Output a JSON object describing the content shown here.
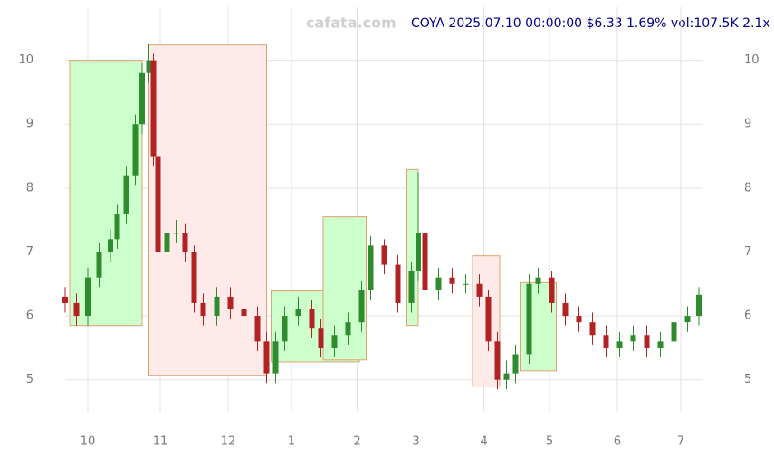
{
  "chart_data": {
    "type": "candlestick",
    "title": "COYA 2025.07.10 00:00:00 $6.33 1.69% vol:107.5K 2.1x",
    "watermark": "cafata.com",
    "xlim": [
      0,
      282
    ],
    "ylim": [
      4.5,
      10.83
    ],
    "xticks": [
      {
        "value": 10,
        "label": "10"
      },
      {
        "value": 42,
        "label": "11"
      },
      {
        "value": 72,
        "label": "12"
      },
      {
        "value": 100,
        "label": "1"
      },
      {
        "value": 129,
        "label": "2"
      },
      {
        "value": 155,
        "label": "3"
      },
      {
        "value": 185,
        "label": "4"
      },
      {
        "value": 214,
        "label": "5"
      },
      {
        "value": 244,
        "label": "6"
      },
      {
        "value": 272,
        "label": "7"
      }
    ],
    "yticks": [
      5,
      6,
      7,
      8,
      9,
      10
    ],
    "grid": true,
    "up_color": "#2e8b2e",
    "down_color": "#b22222",
    "x": [
      0,
      5,
      10,
      15,
      20,
      23,
      27,
      31,
      34,
      37,
      39,
      41,
      45,
      49,
      53,
      57,
      61,
      67,
      73,
      79,
      85,
      89,
      93,
      97,
      103,
      109,
      113,
      119,
      125,
      131,
      135,
      141,
      147,
      153,
      156,
      159,
      165,
      171,
      177,
      183,
      187,
      191,
      195,
      199,
      205,
      209,
      215,
      221,
      227,
      233,
      239,
      245,
      251,
      257,
      263,
      269,
      275,
      280
    ],
    "open": [
      6.3,
      6.2,
      6.0,
      6.6,
      7.0,
      7.2,
      7.6,
      8.2,
      9.0,
      9.8,
      10.0,
      8.5,
      7.0,
      7.3,
      7.3,
      7.0,
      6.2,
      6.0,
      6.3,
      6.1,
      6.0,
      5.6,
      5.1,
      5.6,
      6.0,
      6.1,
      5.8,
      5.5,
      5.7,
      5.9,
      6.4,
      7.1,
      6.8,
      6.2,
      6.7,
      7.3,
      6.4,
      6.6,
      6.5,
      6.5,
      6.3,
      5.6,
      5.0,
      5.1,
      5.4,
      6.5,
      6.6,
      6.2,
      6.0,
      5.9,
      5.7,
      5.5,
      5.6,
      5.7,
      5.5,
      5.6,
      5.9,
      6.0
    ],
    "high": [
      6.45,
      6.35,
      6.75,
      7.15,
      7.35,
      7.75,
      8.35,
      9.15,
      9.95,
      10.25,
      10.1,
      8.6,
      7.45,
      7.5,
      7.45,
      7.1,
      6.35,
      6.45,
      6.45,
      6.25,
      6.15,
      5.75,
      5.75,
      6.15,
      6.3,
      6.25,
      5.95,
      5.85,
      6.05,
      6.55,
      7.25,
      7.2,
      6.95,
      6.85,
      8.25,
      7.4,
      6.75,
      6.75,
      6.65,
      6.65,
      6.4,
      5.75,
      5.3,
      5.55,
      6.65,
      6.75,
      6.7,
      6.35,
      6.15,
      6.05,
      5.85,
      5.75,
      5.85,
      5.85,
      5.75,
      6.05,
      6.15,
      6.45
    ],
    "low": [
      6.05,
      5.85,
      5.85,
      6.45,
      6.85,
      7.05,
      7.45,
      8.05,
      8.85,
      9.65,
      8.35,
      6.85,
      6.85,
      7.15,
      6.85,
      6.05,
      5.85,
      5.85,
      5.95,
      5.85,
      5.45,
      4.95,
      4.95,
      5.45,
      5.85,
      5.65,
      5.35,
      5.35,
      5.55,
      5.75,
      6.25,
      6.65,
      6.05,
      6.05,
      6.55,
      6.25,
      6.25,
      6.35,
      6.35,
      6.15,
      5.45,
      4.85,
      4.85,
      4.95,
      5.25,
      6.35,
      6.05,
      5.85,
      5.75,
      5.55,
      5.35,
      5.35,
      5.45,
      5.35,
      5.35,
      5.45,
      5.75,
      5.85
    ],
    "close": [
      6.2,
      6.0,
      6.6,
      7.0,
      7.2,
      7.6,
      8.2,
      9.0,
      9.8,
      10.0,
      8.5,
      7.0,
      7.3,
      7.3,
      7.0,
      6.2,
      6.0,
      6.3,
      6.1,
      6.0,
      5.6,
      5.1,
      5.6,
      6.0,
      6.1,
      5.8,
      5.5,
      5.7,
      5.9,
      6.4,
      7.1,
      6.8,
      6.2,
      6.7,
      7.3,
      6.4,
      6.6,
      6.5,
      6.5,
      6.3,
      5.6,
      5.0,
      5.1,
      5.4,
      6.5,
      6.6,
      6.2,
      6.0,
      5.9,
      5.7,
      5.5,
      5.6,
      5.7,
      5.5,
      5.6,
      5.9,
      6.0,
      6.33
    ],
    "zones": [
      {
        "x": [
          2,
          34
        ],
        "y": [
          5.85,
          10.0
        ],
        "color": "#ccffcc"
      },
      {
        "x": [
          37,
          89
        ],
        "y": [
          5.07,
          10.24
        ],
        "color": "#ffeaea"
      },
      {
        "x": [
          91,
          130
        ],
        "y": [
          5.28,
          6.39
        ],
        "color": "#ccffcc"
      },
      {
        "x": [
          114,
          133
        ],
        "y": [
          5.31,
          7.55
        ],
        "color": "#ccffcc"
      },
      {
        "x": [
          151,
          156
        ],
        "y": [
          5.85,
          8.29
        ],
        "color": "#ccffcc"
      },
      {
        "x": [
          180,
          192
        ],
        "y": [
          4.9,
          6.94
        ],
        "color": "#ffeaea"
      },
      {
        "x": [
          201,
          217
        ],
        "y": [
          5.14,
          6.52
        ],
        "color": "#ccffcc"
      }
    ]
  }
}
